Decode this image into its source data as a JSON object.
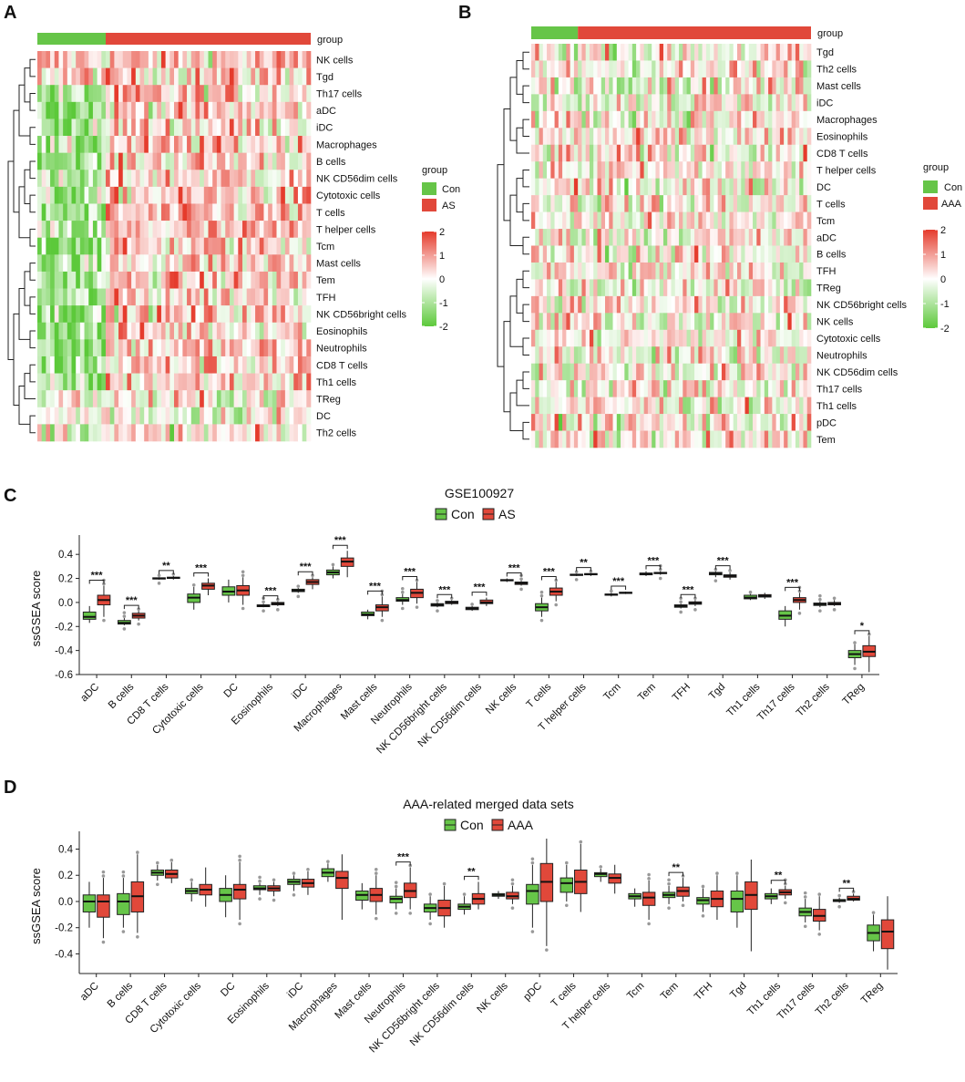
{
  "colors": {
    "con": "#66c548",
    "disease": "#e1483a",
    "heat_low": "#5cc93a",
    "heat_mid": "#ffffff",
    "heat_high": "#e53b2c",
    "outlier": "#999999"
  },
  "panels": {
    "a": {
      "letter": "A",
      "group_label": "group",
      "legend_title": "group",
      "legend_con": "Con",
      "legend_case": "AS",
      "scale_ticks": [
        "2",
        "1",
        "0",
        "-1",
        "-2"
      ],
      "rows": [
        "NK cells",
        "Tgd",
        "Th17 cells",
        "aDC",
        "iDC",
        "Macrophages",
        "B cells",
        "NK CD56dim cells",
        "Cytotoxic cells",
        "T cells",
        "T helper cells",
        "Tcm",
        "Mast cells",
        "Tem",
        "TFH",
        "NK CD56bright cells",
        "Eosinophils",
        "Neutrophils",
        "CD8 T cells",
        "Th1 cells",
        "TReg",
        "DC",
        "Th2 cells"
      ]
    },
    "b": {
      "letter": "B",
      "group_label": "group",
      "legend_title": "group",
      "legend_con": "Con",
      "legend_case": "AAA",
      "scale_ticks": [
        "2",
        "1",
        "0",
        "-1",
        "-2"
      ],
      "rows": [
        "Tgd",
        "Th2 cells",
        "Mast cells",
        "iDC",
        "Macrophages",
        "Eosinophils",
        "CD8 T cells",
        "T helper cells",
        "DC",
        "T cells",
        "Tcm",
        "aDC",
        "B cells",
        "TFH",
        "TReg",
        "NK CD56bright cells",
        "NK cells",
        "Cytotoxic cells",
        "Neutrophils",
        "NK CD56dim cells",
        "Th17 cells",
        "Th1 cells",
        "pDC",
        "Tem"
      ]
    },
    "c": {
      "letter": "C",
      "legend_con": "Con",
      "legend_case": "AS"
    },
    "d": {
      "letter": "D",
      "legend_con": "Con",
      "legend_case": "AAA"
    }
  },
  "chart_data": [
    {
      "type": "heatmap",
      "panel": "A",
      "title": "",
      "group_annotation": {
        "label": "group",
        "con_columns": 16,
        "case_columns": 48
      },
      "legend": {
        "title": "group",
        "entries": [
          "Con",
          "AS"
        ]
      },
      "color_scale": {
        "min": -2,
        "max": 2,
        "ticks": [
          2,
          1,
          0,
          -1,
          -2
        ]
      },
      "rows": [
        "NK cells",
        "Tgd",
        "Th17 cells",
        "aDC",
        "iDC",
        "Macrophages",
        "B cells",
        "NK CD56dim cells",
        "Cytotoxic cells",
        "T cells",
        "T helper cells",
        "Tcm",
        "Mast cells",
        "Tem",
        "TFH",
        "NK CD56bright cells",
        "Eosinophils",
        "Neutrophils",
        "CD8 T cells",
        "Th1 cells",
        "TReg",
        "DC",
        "Th2 cells"
      ],
      "columns": 64,
      "pattern": "Con columns mostly green (low) for most cell types, AS columns mostly red (high)"
    },
    {
      "type": "heatmap",
      "panel": "B",
      "title": "",
      "group_annotation": {
        "label": "group",
        "con_columns": 12,
        "case_columns": 60
      },
      "legend": {
        "title": "group",
        "entries": [
          "Con",
          "AAA"
        ]
      },
      "color_scale": {
        "min": -2,
        "max": 2,
        "ticks": [
          2,
          1,
          0,
          -1,
          -2
        ]
      },
      "rows": [
        "Tgd",
        "Th2 cells",
        "Mast cells",
        "iDC",
        "Macrophages",
        "Eosinophils",
        "CD8 T cells",
        "T helper cells",
        "DC",
        "T cells",
        "Tcm",
        "aDC",
        "B cells",
        "TFH",
        "TReg",
        "NK CD56bright cells",
        "NK cells",
        "Cytotoxic cells",
        "Neutrophils",
        "NK CD56dim cells",
        "Th17 cells",
        "Th1 cells",
        "pDC",
        "Tem"
      ],
      "columns": 72,
      "pattern": "mixed red/green pattern with no clear group separation"
    },
    {
      "type": "box",
      "panel": "C",
      "title": "GSE100927",
      "xlabel": "",
      "ylabel": "ssGSEA score",
      "ylim": [
        -0.6,
        0.5
      ],
      "yticks": [
        0.4,
        0.2,
        0.0,
        -0.2,
        -0.4,
        -0.6
      ],
      "ytick_labels": [
        "0.4",
        "0.2",
        "0.0",
        "-0.2",
        "-0.4",
        "-0.6"
      ],
      "legend": [
        "Con",
        "AS"
      ],
      "categories": [
        "aDC",
        "B cells",
        "CD8 T cells",
        "Cytotoxic cells",
        "DC",
        "Eosinophils",
        "iDC",
        "Macrophages",
        "Mast cells",
        "Neutrophils",
        "NK CD56bright cells",
        "NK CD56dim cells",
        "NK cells",
        "T cells",
        "T helper cells",
        "Tcm",
        "Tem",
        "TFH",
        "Tgd",
        "Th1 cells",
        "Th17 cells",
        "Th2 cells",
        "TReg"
      ],
      "series": [
        {
          "name": "Con",
          "boxes": [
            [
              -0.17,
              -0.14,
              -0.12,
              -0.08,
              -0.03
            ],
            [
              -0.19,
              -0.18,
              -0.17,
              -0.15,
              -0.13
            ],
            [
              0.19,
              0.195,
              0.2,
              0.205,
              0.21
            ],
            [
              -0.06,
              0.0,
              0.04,
              0.07,
              0.13
            ],
            [
              0.0,
              0.06,
              0.09,
              0.13,
              0.19
            ],
            [
              -0.04,
              -0.035,
              -0.03,
              -0.02,
              -0.01
            ],
            [
              0.08,
              0.09,
              0.1,
              0.11,
              0.12
            ],
            [
              0.2,
              0.23,
              0.25,
              0.27,
              0.3
            ],
            [
              -0.14,
              -0.11,
              -0.1,
              -0.08,
              -0.06
            ],
            [
              -0.02,
              0.01,
              0.02,
              0.04,
              0.07
            ],
            [
              -0.04,
              -0.03,
              -0.02,
              -0.01,
              0.0
            ],
            [
              -0.07,
              -0.06,
              -0.05,
              -0.04,
              -0.03
            ],
            [
              0.17,
              0.18,
              0.185,
              0.19,
              0.2
            ],
            [
              -0.12,
              -0.07,
              -0.04,
              -0.01,
              0.04
            ],
            [
              0.22,
              0.225,
              0.23,
              0.235,
              0.24
            ],
            [
              0.05,
              0.06,
              0.065,
              0.07,
              0.08
            ],
            [
              0.22,
              0.23,
              0.235,
              0.245,
              0.26
            ],
            [
              -0.05,
              -0.04,
              -0.03,
              -0.02,
              -0.01
            ],
            [
              0.21,
              0.23,
              0.24,
              0.25,
              0.26
            ],
            [
              0.02,
              0.03,
              0.04,
              0.06,
              0.07
            ],
            [
              -0.2,
              -0.14,
              -0.11,
              -0.07,
              -0.03
            ],
            [
              -0.04,
              -0.025,
              -0.015,
              -0.005,
              0.01
            ],
            [
              -0.52,
              -0.46,
              -0.43,
              -0.4,
              -0.35
            ]
          ]
        },
        {
          "name": "AS",
          "boxes": [
            [
              -0.12,
              -0.02,
              0.02,
              0.06,
              0.14
            ],
            [
              -0.15,
              -0.13,
              -0.11,
              -0.09,
              -0.07
            ],
            [
              0.19,
              0.2,
              0.205,
              0.21,
              0.22
            ],
            [
              0.06,
              0.11,
              0.14,
              0.16,
              0.2
            ],
            [
              -0.02,
              0.06,
              0.1,
              0.14,
              0.21
            ],
            [
              -0.03,
              -0.02,
              -0.01,
              0.0,
              0.01
            ],
            [
              0.11,
              0.15,
              0.17,
              0.19,
              0.21
            ],
            [
              0.21,
              0.3,
              0.34,
              0.37,
              0.43
            ],
            [
              -0.12,
              -0.07,
              -0.04,
              -0.02,
              0.05
            ],
            [
              -0.01,
              0.04,
              0.08,
              0.11,
              0.17
            ],
            [
              -0.02,
              -0.01,
              0.0,
              0.01,
              0.02
            ],
            [
              -0.03,
              -0.01,
              0.0,
              0.02,
              0.04
            ],
            [
              0.14,
              0.15,
              0.16,
              0.17,
              0.18
            ],
            [
              0.01,
              0.06,
              0.09,
              0.12,
              0.17
            ],
            [
              0.22,
              0.23,
              0.235,
              0.24,
              0.245
            ],
            [
              0.07,
              0.075,
              0.08,
              0.085,
              0.09
            ],
            [
              0.23,
              0.24,
              0.245,
              0.25,
              0.26
            ],
            [
              -0.03,
              -0.015,
              -0.005,
              0.005,
              0.02
            ],
            [
              0.19,
              0.21,
              0.22,
              0.23,
              0.25
            ],
            [
              0.03,
              0.045,
              0.055,
              0.065,
              0.08
            ],
            [
              -0.06,
              0.0,
              0.02,
              0.04,
              0.08
            ],
            [
              -0.03,
              -0.02,
              -0.01,
              0.0,
              0.02
            ],
            [
              -0.58,
              -0.45,
              -0.41,
              -0.36,
              -0.28
            ]
          ]
        }
      ],
      "significance": [
        "***",
        "***",
        "**",
        "***",
        "",
        "***",
        "***",
        "***",
        "***",
        "***",
        "***",
        "***",
        "***",
        "***",
        "**",
        "***",
        "***",
        "***",
        "***",
        "",
        "***",
        "",
        "*"
      ]
    },
    {
      "type": "box",
      "panel": "D",
      "title": "AAA-related merged data sets",
      "xlabel": "",
      "ylabel": "ssGSEA score",
      "ylim": [
        -0.55,
        0.48
      ],
      "yticks": [
        0.4,
        0.2,
        0.0,
        -0.2,
        -0.4
      ],
      "ytick_labels": [
        "0.4",
        "0.2",
        "0.0",
        "-0.2",
        "-0.4"
      ],
      "legend": [
        "Con",
        "AAA"
      ],
      "categories": [
        "aDC",
        "B cells",
        "CD8 T cells",
        "Cytotoxic cells",
        "DC",
        "Eosinophils",
        "iDC",
        "Macrophages",
        "Mast cells",
        "Neutrophils",
        "NK CD56bright cells",
        "NK CD56dim cells",
        "NK cells",
        "pDC",
        "T cells",
        "T helper cells",
        "Tcm",
        "Tem",
        "TFH",
        "Tgd",
        "Th1 cells",
        "Th17 cells",
        "Th2 cells",
        "TReg"
      ],
      "series": [
        {
          "name": "Con",
          "boxes": [
            [
              -0.2,
              -0.08,
              0.0,
              0.05,
              0.15
            ],
            [
              -0.2,
              -0.1,
              0.0,
              0.06,
              0.18
            ],
            [
              0.16,
              0.2,
              0.22,
              0.24,
              0.28
            ],
            [
              0.0,
              0.06,
              0.08,
              0.1,
              0.15
            ],
            [
              -0.12,
              0.0,
              0.05,
              0.1,
              0.2
            ],
            [
              0.05,
              0.09,
              0.1,
              0.12,
              0.14
            ],
            [
              0.08,
              0.13,
              0.15,
              0.17,
              0.2
            ],
            [
              0.15,
              0.19,
              0.22,
              0.25,
              0.29
            ],
            [
              -0.06,
              0.01,
              0.05,
              0.08,
              0.14
            ],
            [
              -0.06,
              -0.01,
              0.02,
              0.04,
              0.1
            ],
            [
              -0.14,
              -0.08,
              -0.05,
              -0.02,
              0.04
            ],
            [
              -0.1,
              -0.06,
              -0.04,
              -0.02,
              0.04
            ],
            [
              0.02,
              0.04,
              0.05,
              0.06,
              0.08
            ],
            [
              -0.2,
              -0.02,
              0.08,
              0.13,
              0.28
            ],
            [
              0.0,
              0.07,
              0.14,
              0.18,
              0.28
            ],
            [
              0.15,
              0.19,
              0.21,
              0.22,
              0.25
            ],
            [
              -0.04,
              0.02,
              0.04,
              0.06,
              0.1
            ],
            [
              -0.02,
              0.03,
              0.05,
              0.07,
              0.12
            ],
            [
              -0.08,
              -0.02,
              0.01,
              0.03,
              0.1
            ],
            [
              -0.2,
              -0.08,
              0.02,
              0.08,
              0.2
            ],
            [
              -0.02,
              0.02,
              0.04,
              0.06,
              0.1
            ],
            [
              -0.16,
              -0.11,
              -0.08,
              -0.05,
              0.02
            ],
            [
              -0.01,
              0.0,
              0.005,
              0.015,
              0.03
            ],
            [
              -0.38,
              -0.3,
              -0.24,
              -0.18,
              -0.1
            ]
          ]
        },
        {
          "name": "AAA",
          "boxes": [
            [
              -0.28,
              -0.12,
              0.0,
              0.05,
              0.18
            ],
            [
              -0.24,
              -0.08,
              0.04,
              0.15,
              0.36
            ],
            [
              0.14,
              0.18,
              0.21,
              0.24,
              0.3
            ],
            [
              -0.04,
              0.05,
              0.09,
              0.13,
              0.26
            ],
            [
              -0.14,
              0.02,
              0.09,
              0.13,
              0.3
            ],
            [
              0.04,
              0.08,
              0.1,
              0.12,
              0.15
            ],
            [
              0.05,
              0.11,
              0.14,
              0.17,
              0.23
            ],
            [
              -0.14,
              0.1,
              0.18,
              0.23,
              0.36
            ],
            [
              -0.1,
              0.0,
              0.05,
              0.1,
              0.2
            ],
            [
              -0.06,
              0.03,
              0.08,
              0.14,
              0.26
            ],
            [
              -0.2,
              -0.11,
              -0.05,
              0.01,
              0.12
            ],
            [
              -0.06,
              -0.02,
              0.02,
              0.06,
              0.15
            ],
            [
              -0.02,
              0.02,
              0.04,
              0.07,
              0.12
            ],
            [
              -0.34,
              0.0,
              0.15,
              0.29,
              0.48
            ],
            [
              -0.08,
              0.06,
              0.15,
              0.24,
              0.44
            ],
            [
              0.06,
              0.14,
              0.18,
              0.21,
              0.28
            ],
            [
              -0.14,
              -0.03,
              0.03,
              0.07,
              0.16
            ],
            [
              0.0,
              0.04,
              0.08,
              0.11,
              0.18
            ],
            [
              -0.14,
              -0.04,
              0.02,
              0.08,
              0.2
            ],
            [
              -0.38,
              -0.06,
              0.05,
              0.15,
              0.32
            ],
            [
              0.02,
              0.05,
              0.07,
              0.09,
              0.12
            ],
            [
              -0.22,
              -0.15,
              -0.11,
              -0.06,
              0.04
            ],
            [
              0.0,
              0.01,
              0.02,
              0.04,
              0.06
            ],
            [
              -0.52,
              -0.36,
              -0.23,
              -0.14,
              0.04
            ]
          ]
        }
      ],
      "significance": [
        "",
        "",
        "",
        "",
        "",
        "",
        "",
        "",
        "",
        "***",
        "",
        "**",
        "",
        "",
        "",
        "",
        "",
        "**",
        "",
        "",
        "**",
        "",
        "**",
        ""
      ]
    }
  ]
}
